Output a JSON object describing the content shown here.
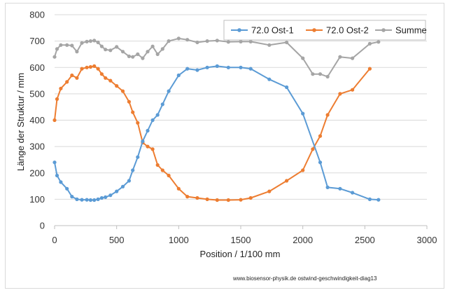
{
  "chart_data": {
    "type": "line",
    "xlabel": "Position  /  1/100 mm",
    "ylabel": "Länge der Struktur / mm",
    "xlim": [
      0,
      3000
    ],
    "ylim": [
      0,
      800
    ],
    "xticks": [
      0,
      500,
      1000,
      1500,
      2000,
      2500,
      3000
    ],
    "yticks": [
      0,
      100,
      200,
      300,
      400,
      500,
      600,
      700,
      800
    ],
    "grid": "horizontal",
    "legend_position": "top-right",
    "source_note": "www.biosensor-physik.de  ostwind-geschwindigkeit-diag13",
    "series": [
      {
        "name": "72.0 Ost-1",
        "color": "#5b9bd5",
        "x": [
          0,
          20,
          50,
          100,
          140,
          180,
          220,
          260,
          290,
          320,
          350,
          380,
          410,
          450,
          500,
          550,
          600,
          630,
          670,
          710,
          750,
          790,
          830,
          870,
          920,
          1000,
          1070,
          1150,
          1230,
          1310,
          1400,
          1500,
          1580,
          1730,
          1870,
          2000,
          2140,
          2200,
          2300,
          2400,
          2540,
          2610
        ],
        "y": [
          240,
          190,
          165,
          140,
          110,
          100,
          98,
          98,
          97,
          97,
          100,
          105,
          108,
          115,
          130,
          148,
          170,
          210,
          260,
          320,
          360,
          400,
          420,
          460,
          510,
          570,
          595,
          590,
          600,
          605,
          600,
          600,
          595,
          555,
          525,
          425,
          240,
          145,
          140,
          125,
          100,
          98
        ]
      },
      {
        "name": "72.0 Ost-2",
        "color": "#ed7d31",
        "x": [
          0,
          20,
          50,
          100,
          140,
          180,
          220,
          260,
          290,
          320,
          350,
          380,
          410,
          450,
          500,
          550,
          600,
          630,
          670,
          710,
          750,
          790,
          830,
          870,
          920,
          1000,
          1070,
          1150,
          1230,
          1310,
          1400,
          1500,
          1580,
          1730,
          1870,
          2000,
          2080,
          2140,
          2200,
          2300,
          2400,
          2540
        ],
        "y": [
          400,
          480,
          520,
          545,
          570,
          560,
          595,
          600,
          602,
          605,
          595,
          575,
          560,
          550,
          530,
          510,
          470,
          430,
          390,
          315,
          300,
          290,
          230,
          210,
          190,
          140,
          110,
          105,
          100,
          97,
          97,
          98,
          105,
          130,
          170,
          210,
          290,
          340,
          420,
          500,
          515,
          595
        ]
      },
      {
        "name": "Summe",
        "color": "#a5a5a5",
        "x": [
          0,
          20,
          50,
          100,
          140,
          180,
          220,
          260,
          290,
          320,
          350,
          380,
          410,
          450,
          500,
          550,
          600,
          630,
          670,
          710,
          750,
          790,
          830,
          870,
          920,
          1000,
          1070,
          1150,
          1230,
          1310,
          1400,
          1500,
          1580,
          1730,
          1870,
          2000,
          2080,
          2140,
          2200,
          2300,
          2400,
          2540,
          2610
        ],
        "y": [
          640,
          670,
          685,
          685,
          683,
          660,
          693,
          698,
          700,
          702,
          695,
          680,
          668,
          665,
          678,
          660,
          642,
          640,
          650,
          635,
          660,
          680,
          650,
          670,
          700,
          710,
          705,
          695,
          700,
          702,
          697,
          698,
          698,
          685,
          695,
          635,
          575,
          575,
          565,
          640,
          635,
          690,
          697
        ]
      }
    ]
  }
}
